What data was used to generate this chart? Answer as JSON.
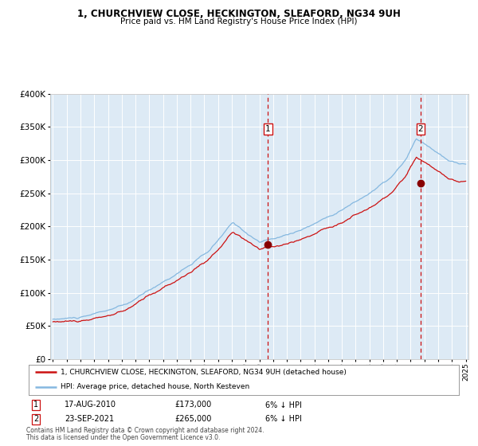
{
  "title": "1, CHURCHVIEW CLOSE, HECKINGTON, SLEAFORD, NG34 9UH",
  "subtitle": "Price paid vs. HM Land Registry's House Price Index (HPI)",
  "legend_entry1": "1, CHURCHVIEW CLOSE, HECKINGTON, SLEAFORD, NG34 9UH (detached house)",
  "legend_entry2": "HPI: Average price, detached house, North Kesteven",
  "transaction1_date": "17-AUG-2010",
  "transaction1_price": 173000,
  "transaction1_price_str": "£173,000",
  "transaction1_pct": "6% ↓ HPI",
  "transaction2_date": "23-SEP-2021",
  "transaction2_price": 265000,
  "transaction2_price_str": "£265,000",
  "transaction2_pct": "6% ↓ HPI",
  "footnote1": "Contains HM Land Registry data © Crown copyright and database right 2024.",
  "footnote2": "This data is licensed under the Open Government Licence v3.0.",
  "background_color": "#ffffff",
  "plot_bg_color": "#ddeaf5",
  "grid_color": "#ffffff",
  "hpi_color": "#85b8e0",
  "price_color": "#cc1111",
  "marker_color": "#880000",
  "vline_color": "#cc1111",
  "ylim": [
    0,
    400000
  ],
  "yticks": [
    0,
    50000,
    100000,
    150000,
    200000,
    250000,
    300000,
    350000,
    400000
  ],
  "start_year": 1995,
  "end_year": 2025,
  "transaction1_year": 2010.625,
  "transaction2_year": 2021.72
}
